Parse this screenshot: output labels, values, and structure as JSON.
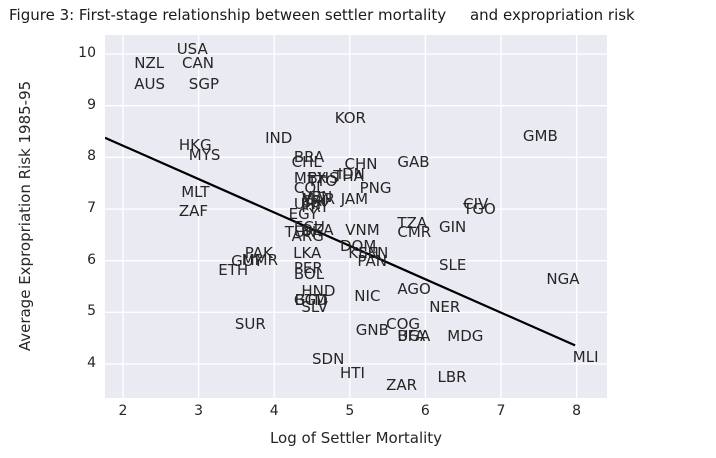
{
  "figure": {
    "background": "#ffffff",
    "plot_background": "#eaeaf2",
    "grid_color": "#ffffff",
    "text_color": "#262626",
    "regression_line_color": "#000000"
  },
  "chart_data": {
    "type": "scatter",
    "title": "Figure 3: First-stage relationship between settler mortality     and expropriation risk",
    "xlabel": "Log of Settler Mortality",
    "ylabel": "Average Expropriation Risk 1985-95",
    "xlim": [
      1.762,
      8.402
    ],
    "ylim": [
      3.34,
      10.37
    ],
    "x_ticks": [
      2,
      3,
      4,
      5,
      6,
      7,
      8
    ],
    "y_ticks": [
      4,
      5,
      6,
      7,
      8,
      9,
      10
    ],
    "grid": true,
    "legend": "none",
    "point_style": "country-code text labels anchored at data point (left-baseline)",
    "regression_line": {
      "x1": 1.762,
      "y1": 8.38,
      "x2": 7.98,
      "y2": 4.36
    },
    "points": [
      {
        "label": "USA",
        "x": 2.71,
        "y": 10.0
      },
      {
        "label": "NZL",
        "x": 2.15,
        "y": 9.73
      },
      {
        "label": "CAN",
        "x": 2.78,
        "y": 9.73
      },
      {
        "label": "AUS",
        "x": 2.15,
        "y": 9.32
      },
      {
        "label": "SGP",
        "x": 2.87,
        "y": 9.32
      },
      {
        "label": "KOR",
        "x": 4.8,
        "y": 8.67
      },
      {
        "label": "GMB",
        "x": 7.29,
        "y": 8.32
      },
      {
        "label": "IND",
        "x": 3.88,
        "y": 8.27
      },
      {
        "label": "HKG",
        "x": 2.74,
        "y": 8.14
      },
      {
        "label": "MYS",
        "x": 2.87,
        "y": 7.95
      },
      {
        "label": "BRA",
        "x": 4.26,
        "y": 7.91
      },
      {
        "label": "CHL",
        "x": 4.23,
        "y": 7.82
      },
      {
        "label": "GAB",
        "x": 5.63,
        "y": 7.82
      },
      {
        "label": "CHN",
        "x": 4.93,
        "y": 7.78
      },
      {
        "label": "IDN",
        "x": 4.84,
        "y": 7.59
      },
      {
        "label": "THA",
        "x": 4.78,
        "y": 7.55
      },
      {
        "label": "MEX",
        "x": 4.26,
        "y": 7.5
      },
      {
        "label": "BHS",
        "x": 4.44,
        "y": 7.5
      },
      {
        "label": "TTO",
        "x": 4.44,
        "y": 7.45
      },
      {
        "label": "COL",
        "x": 4.26,
        "y": 7.32
      },
      {
        "label": "PNG",
        "x": 5.13,
        "y": 7.32
      },
      {
        "label": "MLT",
        "x": 2.77,
        "y": 7.23
      },
      {
        "label": "VEN",
        "x": 4.36,
        "y": 7.14
      },
      {
        "label": "MAR",
        "x": 4.36,
        "y": 7.09
      },
      {
        "label": "JAM",
        "x": 4.88,
        "y": 7.09
      },
      {
        "label": "CRI",
        "x": 4.36,
        "y": 7.05
      },
      {
        "label": "CIV",
        "x": 6.5,
        "y": 7.0
      },
      {
        "label": "URY",
        "x": 4.26,
        "y": 7.0
      },
      {
        "label": "PRY",
        "x": 4.36,
        "y": 6.95
      },
      {
        "label": "TGO",
        "x": 6.5,
        "y": 6.91
      },
      {
        "label": "ZAF",
        "x": 2.74,
        "y": 6.86
      },
      {
        "label": "EGY",
        "x": 4.19,
        "y": 6.8
      },
      {
        "label": "TZA",
        "x": 5.63,
        "y": 6.64
      },
      {
        "label": "ECU",
        "x": 4.26,
        "y": 6.55
      },
      {
        "label": "GIN",
        "x": 6.18,
        "y": 6.55
      },
      {
        "label": "VNM",
        "x": 4.94,
        "y": 6.5
      },
      {
        "label": "DZA",
        "x": 4.36,
        "y": 6.5
      },
      {
        "label": "CMR",
        "x": 5.63,
        "y": 6.45
      },
      {
        "label": "TUN",
        "x": 4.14,
        "y": 6.45
      },
      {
        "label": "ARG",
        "x": 4.23,
        "y": 6.39
      },
      {
        "label": "DOM",
        "x": 4.87,
        "y": 6.18
      },
      {
        "label": "KEN",
        "x": 4.98,
        "y": 6.05
      },
      {
        "label": "SEN",
        "x": 5.11,
        "y": 6.05
      },
      {
        "label": "LKA",
        "x": 4.25,
        "y": 6.05
      },
      {
        "label": "PAK",
        "x": 3.61,
        "y": 6.05
      },
      {
        "label": "MMR",
        "x": 3.57,
        "y": 5.91
      },
      {
        "label": "PAN",
        "x": 5.1,
        "y": 5.9
      },
      {
        "label": "GUY",
        "x": 3.43,
        "y": 5.89
      },
      {
        "label": "SLE",
        "x": 6.18,
        "y": 5.82
      },
      {
        "label": "PER",
        "x": 4.26,
        "y": 5.77
      },
      {
        "label": "ETH",
        "x": 3.26,
        "y": 5.73
      },
      {
        "label": "BOL",
        "x": 4.26,
        "y": 5.64
      },
      {
        "label": "NGA",
        "x": 7.6,
        "y": 5.55
      },
      {
        "label": "AGO",
        "x": 5.63,
        "y": 5.36
      },
      {
        "label": "HND",
        "x": 4.36,
        "y": 5.32
      },
      {
        "label": "NIC",
        "x": 5.06,
        "y": 5.21
      },
      {
        "label": "GTM",
        "x": 4.26,
        "y": 5.14
      },
      {
        "label": "BGD",
        "x": 4.27,
        "y": 5.14
      },
      {
        "label": "SLV",
        "x": 4.36,
        "y": 5.0
      },
      {
        "label": "NER",
        "x": 6.05,
        "y": 5.0
      },
      {
        "label": "COG",
        "x": 5.48,
        "y": 4.68
      },
      {
        "label": "SUR",
        "x": 3.48,
        "y": 4.68
      },
      {
        "label": "GNB",
        "x": 5.08,
        "y": 4.57
      },
      {
        "label": "BFA",
        "x": 5.63,
        "y": 4.45
      },
      {
        "label": "UGA",
        "x": 5.63,
        "y": 4.45
      },
      {
        "label": "MDG",
        "x": 6.29,
        "y": 4.45
      },
      {
        "label": "MLI",
        "x": 7.95,
        "y": 4.03
      },
      {
        "label": "SDN",
        "x": 4.5,
        "y": 4.0
      },
      {
        "label": "HTI",
        "x": 4.87,
        "y": 3.72
      },
      {
        "label": "LBR",
        "x": 6.16,
        "y": 3.65
      },
      {
        "label": "ZAR",
        "x": 5.48,
        "y": 3.5
      }
    ]
  }
}
